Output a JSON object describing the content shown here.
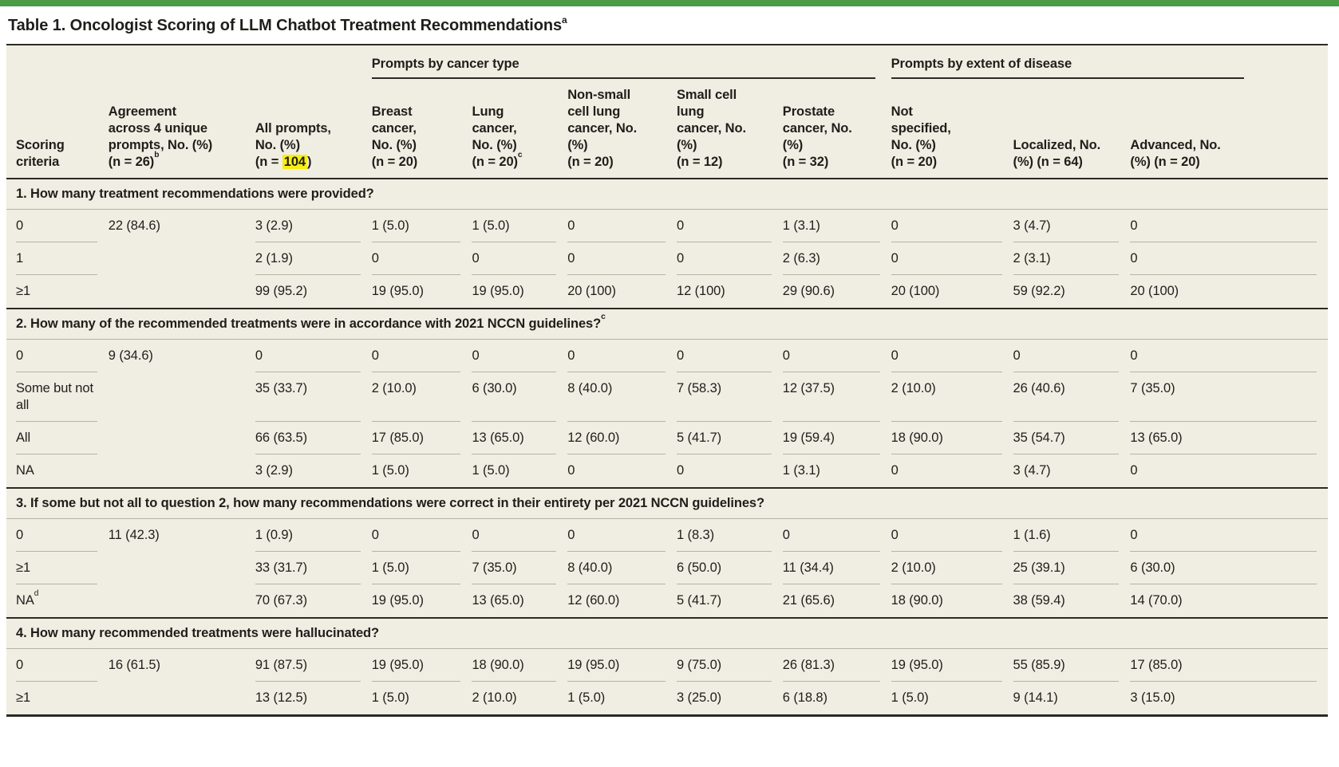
{
  "colors": {
    "accent_bar": "#4c9b47",
    "table_bg": "#f0eee3",
    "hl": "#f8ee14",
    "rule_dark": "#2b2a25",
    "rule_light": "#b5b3a6",
    "ink": "#1f1e1a"
  },
  "title": {
    "text": "Table 1. Oncologist Scoring of LLM Chatbot Treatment Recommendations",
    "footnote_marker": "a"
  },
  "table": {
    "spanners": [
      {
        "label": "",
        "colspan": 3
      },
      {
        "label": "Prompts by cancer type",
        "colspan": 5
      },
      {
        "label": "Prompts by extent of disease",
        "colspan": 3
      }
    ],
    "columns": [
      {
        "label": "Scoring\ncriteria"
      },
      {
        "label": "Agreement\nacross 4 unique\nprompts, No. (%)\n(n = 26)",
        "footnote_marker": "b"
      },
      {
        "label_pre": "All prompts,\nNo. (%)\n(n = ",
        "highlight": "104",
        "label_post": ")"
      },
      {
        "label": "Breast\ncancer,\nNo. (%)\n(n = 20)"
      },
      {
        "label": "Lung\ncancer,\nNo. (%)\n(n = 20)",
        "footnote_marker": "c"
      },
      {
        "label": "Non-small\ncell lung\ncancer, No.\n(%)\n(n = 20)"
      },
      {
        "label": "Small cell\nlung\ncancer, No.\n(%)\n(n = 12)"
      },
      {
        "label": "Prostate\ncancer, No.\n(%)\n(n = 32)"
      },
      {
        "label": "Not\nspecified,\nNo. (%)\n(n = 20)"
      },
      {
        "label": "Localized, No.\n(%) (n = 64)"
      },
      {
        "label": "Advanced, No.\n(%) (n = 20)"
      }
    ],
    "sections": [
      {
        "question": "1. How many treatment recommendations were provided?",
        "agreement": "22 (84.6)",
        "rows": [
          {
            "label": "0",
            "values": [
              "3 (2.9)",
              "1 (5.0)",
              "1 (5.0)",
              "0",
              "0",
              "1 (3.1)",
              "0",
              "3 (4.7)",
              "0"
            ]
          },
          {
            "label": "1",
            "values": [
              "2 (1.9)",
              "0",
              "0",
              "0",
              "0",
              "2 (6.3)",
              "0",
              "2 (3.1)",
              "0"
            ]
          },
          {
            "label": "≥1",
            "values": [
              "99 (95.2)",
              "19 (95.0)",
              "19 (95.0)",
              "20 (100)",
              "12 (100)",
              "29 (90.6)",
              "20 (100)",
              "59 (92.2)",
              "20 (100)"
            ]
          }
        ]
      },
      {
        "question": "2. How many of the recommended treatments were in accordance with 2021 NCCN guidelines?",
        "footnote_marker": "c",
        "agreement": "9 (34.6)",
        "rows": [
          {
            "label": "0",
            "values": [
              "0",
              "0",
              "0",
              "0",
              "0",
              "0",
              "0",
              "0",
              "0"
            ]
          },
          {
            "label": "Some but not all",
            "values": [
              "35 (33.7)",
              "2 (10.0)",
              "6 (30.0)",
              "8 (40.0)",
              "7 (58.3)",
              "12 (37.5)",
              "2 (10.0)",
              "26 (40.6)",
              "7 (35.0)"
            ]
          },
          {
            "label": "All",
            "values": [
              "66 (63.5)",
              "17 (85.0)",
              "13 (65.0)",
              "12 (60.0)",
              "5 (41.7)",
              "19 (59.4)",
              "18 (90.0)",
              "35 (54.7)",
              "13 (65.0)"
            ]
          },
          {
            "label": "NA",
            "values": [
              "3 (2.9)",
              "1 (5.0)",
              "1 (5.0)",
              "0",
              "0",
              "1 (3.1)",
              "0",
              "3 (4.7)",
              "0"
            ]
          }
        ]
      },
      {
        "question": "3. If some but not all to question 2, how many recommendations were correct in their entirety per 2021 NCCN guidelines?",
        "agreement": "11 (42.3)",
        "rows": [
          {
            "label": "0",
            "values": [
              "1 (0.9)",
              "0",
              "0",
              "0",
              "1 (8.3)",
              "0",
              "0",
              "1 (1.6)",
              "0"
            ]
          },
          {
            "label": "≥1",
            "values": [
              "33 (31.7)",
              "1 (5.0)",
              "7 (35.0)",
              "8 (40.0)",
              "6 (50.0)",
              "11 (34.4)",
              "2 (10.0)",
              "25 (39.1)",
              "6 (30.0)"
            ]
          },
          {
            "label": "NA",
            "footnote_marker": "d",
            "values": [
              "70 (67.3)",
              "19 (95.0)",
              "13 (65.0)",
              "12 (60.0)",
              "5 (41.7)",
              "21 (65.6)",
              "18 (90.0)",
              "38 (59.4)",
              "14 (70.0)"
            ]
          }
        ]
      },
      {
        "question": "4. How many recommended treatments were hallucinated?",
        "agreement": "16 (61.5)",
        "rows": [
          {
            "label": "0",
            "values": [
              "91 (87.5)",
              "19 (95.0)",
              "18 (90.0)",
              "19 (95.0)",
              "9 (75.0)",
              "26 (81.3)",
              "19 (95.0)",
              "55 (85.9)",
              "17 (85.0)"
            ]
          },
          {
            "label": "≥1",
            "values": [
              "13 (12.5)",
              "1 (5.0)",
              "2 (10.0)",
              "1 (5.0)",
              "3 (25.0)",
              "6 (18.8)",
              "1 (5.0)",
              "9 (14.1)",
              "3 (15.0)"
            ]
          }
        ]
      }
    ]
  }
}
